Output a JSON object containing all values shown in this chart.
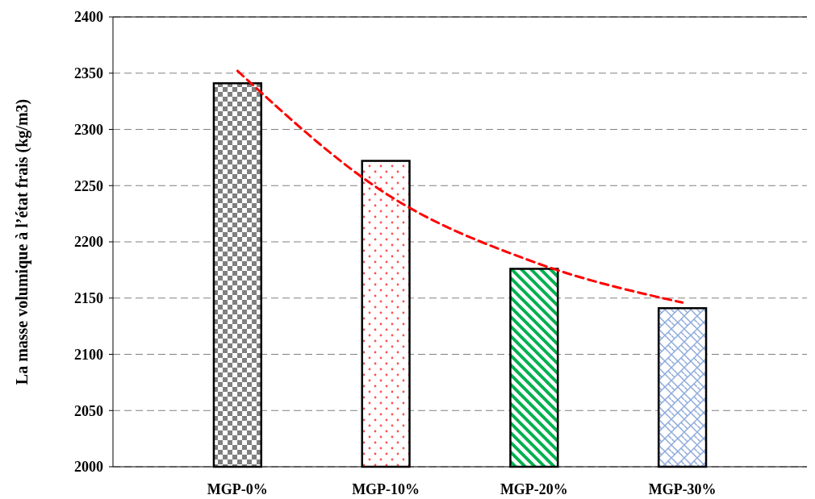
{
  "chart_data": {
    "type": "bar",
    "ylabel": "La masse volumique à l’état frais (kg/m3)",
    "categories": [
      "MGP-0%",
      "MGP-10%",
      "MGP-20%",
      "MGP-30%"
    ],
    "series": [
      {
        "values": [
          2341,
          2272,
          2176,
          2141
        ],
        "colors": [
          "#808080",
          "#ff5050",
          "#00b050",
          "#8eaadb"
        ]
      },
      {
        "type": "line",
        "color": "#ff0000",
        "line_style": "dashed",
        "x": [
          "MGP-0%",
          "MGP-10%",
          "MGP-20%",
          "MGP-30%"
        ],
        "values": [
          2352,
          2243,
          2182,
          2146
        ]
      }
    ],
    "ylim": [
      2000,
      2400
    ],
    "yticks": [
      2000,
      2050,
      2100,
      2150,
      2200,
      2250,
      2300,
      2350,
      2400
    ],
    "grid": "y"
  }
}
